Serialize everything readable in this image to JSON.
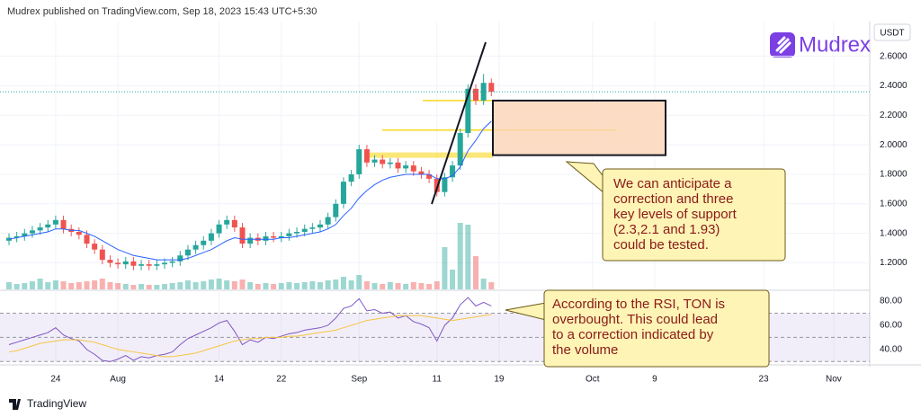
{
  "header": "Mudrex published on TradingView.com, Sep 18, 2023 15:43 UTC+5:30",
  "logo": "Mudrex",
  "footer": "TradingView",
  "notes": [
    {
      "lines": [
        "We can anticipate a",
        "correction and three",
        "key levels of support",
        "(2.3,2.1 and 1.93)",
        "could be tested."
      ]
    },
    {
      "lines": [
        "According to the RSI, TON is",
        "overbought. This could lead",
        "to a correction indicated by",
        "the volume"
      ]
    }
  ],
  "chart_data": [
    {
      "type": "candlestick",
      "unit": "USDT",
      "x": [
        "2023-07-18",
        "2023-07-19",
        "2023-07-20",
        "2023-07-21",
        "2023-07-22",
        "2023-07-23",
        "2023-07-24",
        "2023-07-25",
        "2023-07-26",
        "2023-07-27",
        "2023-07-28",
        "2023-07-29",
        "2023-07-30",
        "2023-07-31",
        "2023-08-01",
        "2023-08-02",
        "2023-08-03",
        "2023-08-04",
        "2023-08-05",
        "2023-08-06",
        "2023-08-07",
        "2023-08-08",
        "2023-08-09",
        "2023-08-10",
        "2023-08-11",
        "2023-08-12",
        "2023-08-13",
        "2023-08-14",
        "2023-08-15",
        "2023-08-16",
        "2023-08-17",
        "2023-08-18",
        "2023-08-19",
        "2023-08-20",
        "2023-08-21",
        "2023-08-22",
        "2023-08-23",
        "2023-08-24",
        "2023-08-25",
        "2023-08-26",
        "2023-08-27",
        "2023-08-28",
        "2023-08-29",
        "2023-08-30",
        "2023-08-31",
        "2023-09-01",
        "2023-09-02",
        "2023-09-03",
        "2023-09-04",
        "2023-09-05",
        "2023-09-06",
        "2023-09-07",
        "2023-09-08",
        "2023-09-09",
        "2023-09-10",
        "2023-09-11",
        "2023-09-12",
        "2023-09-13",
        "2023-09-14",
        "2023-09-15",
        "2023-09-16",
        "2023-09-17",
        "2023-09-18"
      ],
      "open": [
        1.35,
        1.37,
        1.38,
        1.4,
        1.42,
        1.44,
        1.46,
        1.49,
        1.43,
        1.41,
        1.39,
        1.33,
        1.29,
        1.22,
        1.2,
        1.19,
        1.21,
        1.18,
        1.19,
        1.18,
        1.19,
        1.2,
        1.21,
        1.25,
        1.29,
        1.32,
        1.35,
        1.4,
        1.46,
        1.49,
        1.44,
        1.33,
        1.37,
        1.35,
        1.38,
        1.37,
        1.38,
        1.4,
        1.41,
        1.43,
        1.44,
        1.46,
        1.51,
        1.6,
        1.75,
        1.8,
        1.97,
        1.88,
        1.9,
        1.87,
        1.88,
        1.84,
        1.86,
        1.82,
        1.8,
        1.77,
        1.68,
        1.78,
        1.86,
        2.08,
        2.38,
        2.3,
        2.42
      ],
      "high": [
        1.4,
        1.41,
        1.43,
        1.45,
        1.47,
        1.49,
        1.52,
        1.52,
        1.46,
        1.44,
        1.42,
        1.36,
        1.32,
        1.25,
        1.23,
        1.24,
        1.24,
        1.22,
        1.22,
        1.22,
        1.23,
        1.24,
        1.28,
        1.32,
        1.35,
        1.38,
        1.43,
        1.49,
        1.52,
        1.52,
        1.47,
        1.4,
        1.4,
        1.41,
        1.41,
        1.41,
        1.43,
        1.44,
        1.46,
        1.47,
        1.49,
        1.54,
        1.63,
        1.78,
        1.83,
        2.0,
        2.0,
        1.93,
        1.93,
        1.91,
        1.91,
        1.89,
        1.89,
        1.85,
        1.83,
        1.8,
        1.81,
        1.89,
        2.11,
        2.41,
        2.41,
        2.48,
        2.45
      ],
      "low": [
        1.32,
        1.34,
        1.35,
        1.37,
        1.39,
        1.41,
        1.43,
        1.4,
        1.38,
        1.36,
        1.3,
        1.26,
        1.19,
        1.17,
        1.16,
        1.16,
        1.15,
        1.15,
        1.15,
        1.15,
        1.16,
        1.17,
        1.18,
        1.22,
        1.26,
        1.29,
        1.32,
        1.37,
        1.43,
        1.41,
        1.3,
        1.3,
        1.32,
        1.32,
        1.34,
        1.34,
        1.35,
        1.37,
        1.38,
        1.4,
        1.41,
        1.43,
        1.48,
        1.57,
        1.72,
        1.77,
        1.85,
        1.85,
        1.84,
        1.84,
        1.81,
        1.81,
        1.79,
        1.77,
        1.74,
        1.65,
        1.65,
        1.75,
        1.83,
        2.05,
        2.27,
        2.27,
        2.33
      ],
      "close": [
        1.37,
        1.38,
        1.4,
        1.42,
        1.44,
        1.46,
        1.49,
        1.43,
        1.41,
        1.39,
        1.33,
        1.29,
        1.22,
        1.2,
        1.19,
        1.21,
        1.18,
        1.19,
        1.18,
        1.19,
        1.2,
        1.21,
        1.25,
        1.29,
        1.32,
        1.35,
        1.4,
        1.46,
        1.49,
        1.44,
        1.33,
        1.37,
        1.35,
        1.38,
        1.37,
        1.38,
        1.4,
        1.41,
        1.43,
        1.44,
        1.46,
        1.51,
        1.6,
        1.75,
        1.8,
        1.97,
        1.88,
        1.9,
        1.87,
        1.88,
        1.84,
        1.86,
        1.82,
        1.8,
        1.77,
        1.68,
        1.78,
        1.86,
        2.08,
        2.38,
        2.3,
        2.42,
        2.36
      ],
      "up_color": "#26a69a",
      "down_color": "#ef5350",
      "ema": {
        "color": "#2962ff",
        "values": [
          1.36,
          1.37,
          1.38,
          1.39,
          1.4,
          1.41,
          1.43,
          1.43,
          1.42,
          1.42,
          1.4,
          1.38,
          1.35,
          1.32,
          1.29,
          1.27,
          1.25,
          1.24,
          1.23,
          1.22,
          1.22,
          1.22,
          1.22,
          1.23,
          1.25,
          1.27,
          1.29,
          1.32,
          1.35,
          1.37,
          1.36,
          1.36,
          1.36,
          1.36,
          1.36,
          1.37,
          1.37,
          1.38,
          1.39,
          1.4,
          1.41,
          1.43,
          1.46,
          1.52,
          1.57,
          1.64,
          1.69,
          1.73,
          1.76,
          1.78,
          1.79,
          1.8,
          1.8,
          1.8,
          1.8,
          1.77,
          1.77,
          1.79,
          1.85,
          1.96,
          2.03,
          2.11,
          2.16
        ]
      },
      "support_levels": [
        2.3,
        2.1,
        1.93
      ],
      "level_color": "#f9d71c",
      "ylim": [
        1.02,
        2.86
      ],
      "yticks": [
        {
          "value": 1.2,
          "label": "1.2000"
        },
        {
          "value": 1.4,
          "label": "1.4000"
        },
        {
          "value": 1.6,
          "label": "1.6000"
        },
        {
          "value": 1.8,
          "label": "1.8000"
        },
        {
          "value": 2.0,
          "label": "2.0000"
        },
        {
          "value": 2.2,
          "label": "2.2000"
        },
        {
          "value": 2.4,
          "label": "2.4000"
        },
        {
          "value": 2.6,
          "label": "2.6000"
        }
      ],
      "xticks": [
        {
          "value": "2023-07-24",
          "label": "24"
        },
        {
          "value": "2023-08-01",
          "label": "Aug"
        },
        {
          "value": "2023-08-14",
          "label": "14"
        },
        {
          "value": "2023-08-22",
          "label": "22"
        },
        {
          "value": "2023-09-01",
          "label": "Sep"
        },
        {
          "value": "2023-09-11",
          "label": "11"
        },
        {
          "value": "2023-09-19",
          "label": "19"
        },
        {
          "value": "2023-10-01",
          "label": "Oct"
        },
        {
          "value": "2023-10-09",
          "label": "9"
        },
        {
          "value": "2023-10-23",
          "label": "23"
        },
        {
          "value": "2023-11-01",
          "label": "Nov"
        }
      ]
    },
    {
      "type": "bar",
      "ylim": [
        0,
        100
      ],
      "values": [
        8,
        6,
        7,
        9,
        12,
        8,
        10,
        9,
        7,
        8,
        9,
        10,
        12,
        8,
        7,
        6,
        5,
        6,
        5,
        5,
        6,
        7,
        8,
        10,
        8,
        9,
        11,
        12,
        10,
        9,
        11,
        8,
        6,
        7,
        6,
        7,
        8,
        7,
        8,
        9,
        8,
        10,
        11,
        14,
        10,
        16,
        9,
        7,
        6,
        8,
        7,
        6,
        8,
        7,
        6,
        9,
        47,
        22,
        74,
        72,
        37,
        12,
        8
      ]
    },
    {
      "type": "line",
      "ylim": [
        28,
        89
      ],
      "levels": [
        70,
        50,
        30
      ],
      "series": [
        {
          "color": "#7e57c2",
          "values": [
            44,
            46,
            48,
            50,
            52,
            54,
            58,
            52,
            49,
            47,
            40,
            36,
            31,
            30,
            32,
            35,
            31,
            34,
            33,
            35,
            36,
            38,
            44,
            49,
            52,
            55,
            58,
            62,
            64,
            55,
            44,
            48,
            46,
            50,
            49,
            51,
            53,
            54,
            56,
            57,
            58,
            60,
            66,
            74,
            76,
            82,
            72,
            73,
            70,
            71,
            66,
            68,
            63,
            61,
            58,
            47,
            60,
            66,
            77,
            83,
            76,
            79,
            76
          ]
        },
        {
          "color": "#f5c542",
          "values": [
            38,
            39,
            41,
            43,
            45,
            46,
            47,
            48,
            48,
            48,
            47,
            46,
            44,
            42,
            40,
            39,
            38,
            37,
            36,
            35,
            34,
            34,
            35,
            36,
            37,
            39,
            41,
            43,
            45,
            47,
            48,
            49,
            49,
            50,
            50,
            50,
            51,
            51,
            52,
            53,
            54,
            55,
            56,
            58,
            60,
            62,
            64,
            65,
            66,
            67,
            68,
            68,
            68,
            68,
            67,
            66,
            65,
            64,
            65,
            66,
            67,
            68,
            69
          ]
        }
      ],
      "yticks": [
        {
          "value": 80,
          "label": "80.00"
        },
        {
          "value": 60,
          "label": "60.00"
        },
        {
          "value": 40,
          "label": "40.00"
        }
      ]
    }
  ]
}
